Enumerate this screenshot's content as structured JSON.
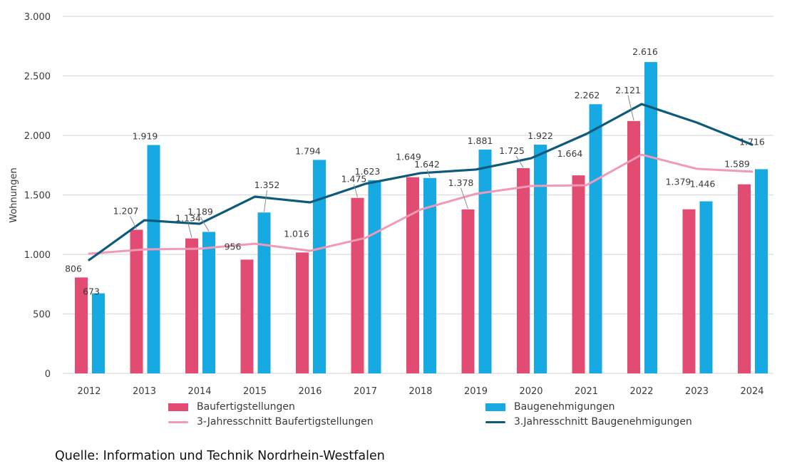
{
  "chart_data": {
    "type": "bar",
    "title": "",
    "xlabel": "",
    "ylabel": "Wohnungen",
    "ylim": [
      0,
      3000
    ],
    "yticks": [
      0,
      500,
      1000,
      1500,
      2000,
      2500,
      3000
    ],
    "ytick_labels": [
      "0",
      "500",
      "1.000",
      "1.500",
      "2.000",
      "2.500",
      "3.000"
    ],
    "grid": true,
    "categories": [
      "2012",
      "2013",
      "2014",
      "2015",
      "2016",
      "2017",
      "2018",
      "2019",
      "2020",
      "2021",
      "2022",
      "2023",
      "2024"
    ],
    "series": [
      {
        "name": "Baufertigstellungen",
        "kind": "bar",
        "color": "#e24b72",
        "values": [
          806,
          1207,
          1134,
          956,
          1016,
          1475,
          1649,
          1378,
          1725,
          1664,
          2121,
          1379,
          1589
        ],
        "labels": [
          "806",
          "1.207",
          "1.134",
          "956",
          "1.016",
          "1.475",
          "1.649",
          "1.378",
          "1.725",
          "1.664",
          "2.121",
          "1.379",
          "1.589"
        ]
      },
      {
        "name": "Baugenehmigungen",
        "kind": "bar",
        "color": "#17a9e1",
        "values": [
          673,
          1919,
          1189,
          1352,
          1794,
          1623,
          1642,
          1881,
          1922,
          2262,
          2616,
          1446,
          1716
        ],
        "labels": [
          "673",
          "1.919",
          "1.189",
          "1.352",
          "1.794",
          "1.623",
          "1.642",
          "1.881",
          "1.922",
          "2.262",
          "2.616",
          "1.446",
          "1.716"
        ]
      },
      {
        "name": "3-Jahresschnitt Baufertigstellungen",
        "kind": "line",
        "color": "#f09ab8",
        "values": [
          1006,
          1042,
          1048,
          1090,
          1030,
          1138,
          1377,
          1509,
          1575,
          1581,
          1838,
          1719,
          1695
        ]
      },
      {
        "name": "3.Jahresschnitt Baugenehmigungen",
        "kind": "line",
        "color": "#0e5a7a",
        "values": [
          953,
          1287,
          1257,
          1485,
          1437,
          1593,
          1683,
          1713,
          1808,
          2012,
          2263,
          2108,
          1922
        ]
      }
    ],
    "legend_position": "bottom"
  },
  "source": "Quelle: Information und Technik Nordrhein-Westfalen"
}
